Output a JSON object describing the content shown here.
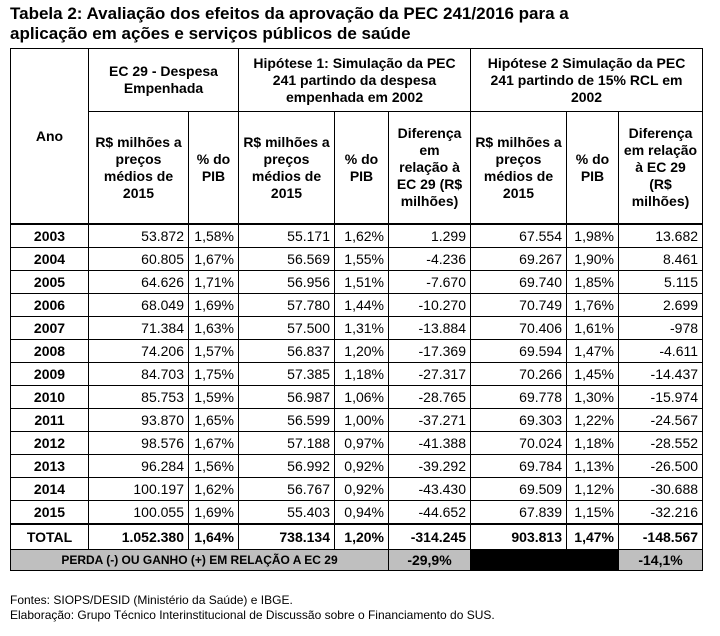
{
  "title_lines": [
    "Tabela 2: Avaliação dos efeitos da aprovação da PEC 241/2016 para a",
    "aplicação em ações e serviços públicos de saúde"
  ],
  "table": {
    "group_headers": [
      "Ano",
      "EC 29 - Despesa Empenhada",
      "Hipótese 1: Simulação da PEC 241 partindo da despesa empenhada em 2002",
      "Hipótese 2 Simulação da PEC 241 partindo de 15% RCL em 2002"
    ],
    "sub_headers": [
      "R$ milhões a preços médios de 2015",
      "% do PIB",
      "R$ milhões a preços médios de 2015",
      "% do PIB",
      "Diferença em relação à EC 29 (R$ milhões)",
      "R$ milhões a preços médios de 2015",
      "% do PIB",
      "Diferença em relação à EC 29 (R$ milhões)"
    ],
    "rows": [
      [
        "2003",
        "53.872",
        "1,58%",
        "55.171",
        "1,62%",
        "1.299",
        "67.554",
        "1,98%",
        "13.682"
      ],
      [
        "2004",
        "60.805",
        "1,67%",
        "56.569",
        "1,55%",
        "-4.236",
        "69.267",
        "1,90%",
        "8.461"
      ],
      [
        "2005",
        "64.626",
        "1,71%",
        "56.956",
        "1,51%",
        "-7.670",
        "69.740",
        "1,85%",
        "5.115"
      ],
      [
        "2006",
        "68.049",
        "1,69%",
        "57.780",
        "1,44%",
        "-10.270",
        "70.749",
        "1,76%",
        "2.699"
      ],
      [
        "2007",
        "71.384",
        "1,63%",
        "57.500",
        "1,31%",
        "-13.884",
        "70.406",
        "1,61%",
        "-978"
      ],
      [
        "2008",
        "74.206",
        "1,57%",
        "56.837",
        "1,20%",
        "-17.369",
        "69.594",
        "1,47%",
        "-4.611"
      ],
      [
        "2009",
        "84.703",
        "1,75%",
        "57.385",
        "1,18%",
        "-27.317",
        "70.266",
        "1,45%",
        "-14.437"
      ],
      [
        "2010",
        "85.753",
        "1,59%",
        "56.987",
        "1,06%",
        "-28.765",
        "69.778",
        "1,30%",
        "-15.974"
      ],
      [
        "2011",
        "93.870",
        "1,65%",
        "56.599",
        "1,00%",
        "-37.271",
        "69.303",
        "1,22%",
        "-24.567"
      ],
      [
        "2012",
        "98.576",
        "1,67%",
        "57.188",
        "0,97%",
        "-41.388",
        "70.024",
        "1,18%",
        "-28.552"
      ],
      [
        "2013",
        "96.284",
        "1,56%",
        "56.992",
        "0,92%",
        "-39.292",
        "69.784",
        "1,13%",
        "-26.500"
      ],
      [
        "2014",
        "100.197",
        "1,62%",
        "56.767",
        "0,92%",
        "-43.430",
        "69.509",
        "1,12%",
        "-30.688"
      ],
      [
        "2015",
        "100.055",
        "1,69%",
        "55.403",
        "0,94%",
        "-44.652",
        "67.839",
        "1,15%",
        "-32.216"
      ]
    ],
    "total": [
      "TOTAL",
      "1.052.380",
      "1,64%",
      "738.134",
      "1,20%",
      "-314.245",
      "903.813",
      "1,47%",
      "-148.567"
    ],
    "perda": {
      "label": "PERDA (-) OU GANHO (+) EM RELAÇÃO A EC 29",
      "hipotese_1": "-29,9%",
      "hipotese_2": "-14,1%"
    }
  },
  "footnotes": [
    "Fontes: SIOPS/DESID (Ministério da Saúde) e IBGE.",
    "Elaboração: Grupo Técnico Interinstitucional de Discussão sobre o Financiamento do SUS."
  ]
}
